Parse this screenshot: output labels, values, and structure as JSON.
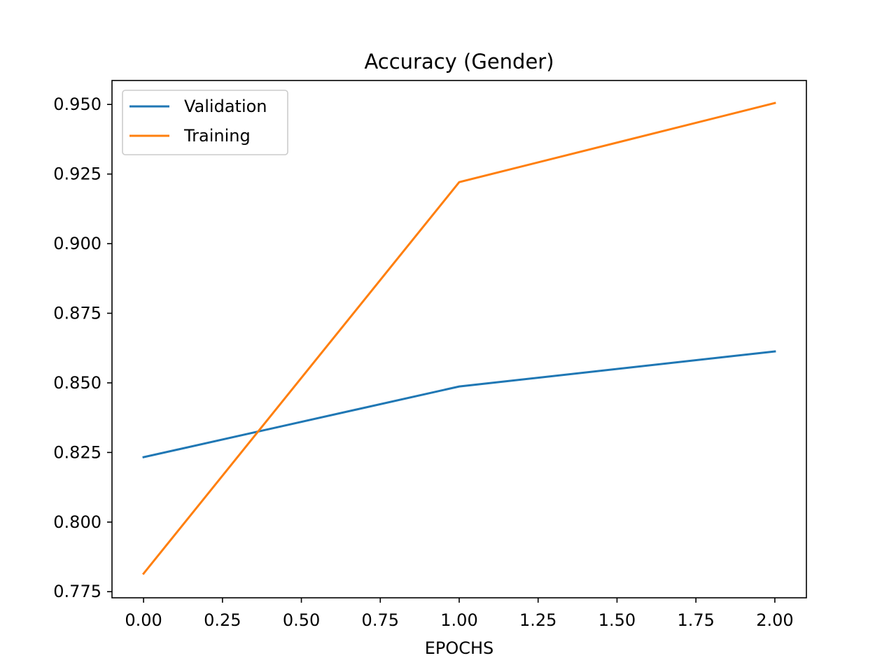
{
  "chart_data": {
    "type": "line",
    "title": "Accuracy (Gender)",
    "xlabel": "EPOCHS",
    "ylabel": "",
    "x": [
      0,
      1,
      2
    ],
    "xlim": [
      -0.1,
      2.1
    ],
    "ylim": [
      0.7728,
      0.9586
    ],
    "xticks": [
      0.0,
      0.25,
      0.5,
      0.75,
      1.0,
      1.25,
      1.5,
      1.75,
      2.0
    ],
    "xtick_labels": [
      "0.00",
      "0.25",
      "0.50",
      "0.75",
      "1.00",
      "1.25",
      "1.50",
      "1.75",
      "2.00"
    ],
    "yticks": [
      0.775,
      0.8,
      0.825,
      0.85,
      0.875,
      0.9,
      0.925,
      0.95
    ],
    "ytick_labels": [
      "0.775",
      "0.800",
      "0.825",
      "0.850",
      "0.875",
      "0.900",
      "0.925",
      "0.950"
    ],
    "grid": false,
    "legend_position": "upper-left",
    "series": [
      {
        "name": "Validation",
        "values": [
          0.8233,
          0.8487,
          0.8613
        ],
        "color": "#1f77b4"
      },
      {
        "name": "Training",
        "values": [
          0.7815,
          0.9221,
          0.9505
        ],
        "color": "#ff7f0e"
      }
    ]
  }
}
